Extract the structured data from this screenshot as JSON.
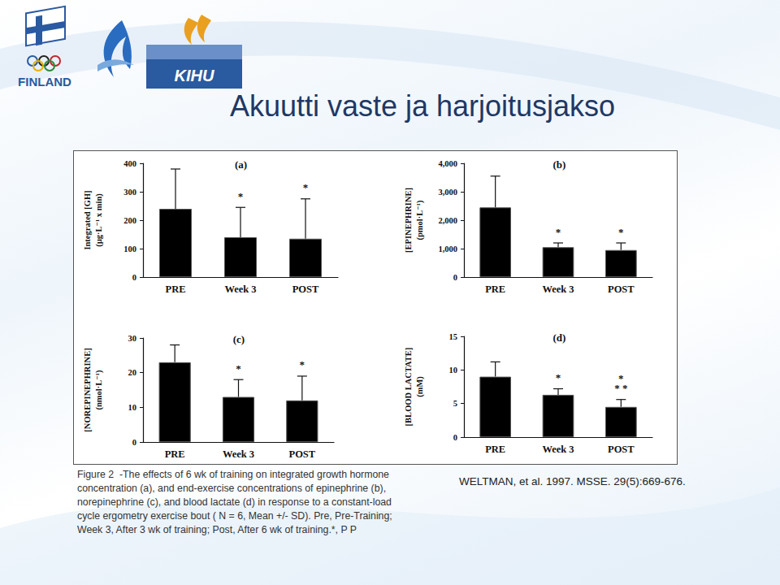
{
  "slide": {
    "title": "Akuutti vaste ja harjoitusjakso",
    "logos": [
      "FINLAND",
      "KIHU"
    ],
    "caption": [
      "Figure 2  -The effects of 6 wk of training on integrated growth hormone",
      "concentration (a), and end-exercise concentrations of epinephrine (b),",
      "norepinephrine (c), and blood lactate (d) in response to a constant-load",
      "cycle ergometry exercise bout ( N = 6, Mean +/- SD). Pre, Pre-Training;",
      "Week 3, After 3 wk of training; Post, After 6 wk of training.*, P P"
    ],
    "citation": "WELTMAN, et al. 1997. MSSE. 29(5):669-676."
  },
  "chart_data": [
    {
      "type": "bar",
      "title": "(a)",
      "ylabel": "Integrated [GH]\n(µg·L⁻¹ x min)",
      "categories": [
        "PRE",
        "Week 3",
        "POST"
      ],
      "values": [
        240,
        140,
        135
      ],
      "errors": [
        140,
        105,
        140
      ],
      "annotations": [
        null,
        "*",
        "*"
      ],
      "color": "#000000",
      "ylim": [
        0,
        400
      ],
      "yticks": [
        0,
        100,
        200,
        300,
        400
      ],
      "grid": false
    },
    {
      "type": "bar",
      "title": "(b)",
      "ylabel": "[EPINEPHRINE]\n(pmol·L⁻¹)",
      "categories": [
        "PRE",
        "Week 3",
        "POST"
      ],
      "values": [
        2450,
        1050,
        950
      ],
      "errors": [
        1100,
        150,
        250
      ],
      "annotations": [
        null,
        "*",
        "*"
      ],
      "color": "#000000",
      "ylim": [
        0,
        4000
      ],
      "yticks": [
        0,
        1000,
        2000,
        3000,
        4000
      ],
      "grid": false
    },
    {
      "type": "bar",
      "title": "(c)",
      "ylabel": "[NOREPINEPHRINE]\n(nmol·L⁻¹)",
      "categories": [
        "PRE",
        "Week 3",
        "POST"
      ],
      "values": [
        23,
        13,
        12
      ],
      "errors": [
        5,
        5,
        7
      ],
      "annotations": [
        null,
        "*",
        "*"
      ],
      "color": "#000000",
      "ylim": [
        0,
        30
      ],
      "yticks": [
        0,
        10,
        20,
        30
      ],
      "grid": false
    },
    {
      "type": "bar",
      "title": "(d)",
      "ylabel": "[BLOOD LACTATE]\n(mM)",
      "categories": [
        "PRE",
        "Week 3",
        "POST"
      ],
      "values": [
        9,
        6.3,
        4.5
      ],
      "errors": [
        2.2,
        0.9,
        1.1
      ],
      "annotations": [
        null,
        "*",
        "*\n* *"
      ],
      "color": "#000000",
      "ylim": [
        0,
        15
      ],
      "yticks": [
        0,
        5,
        10,
        15
      ],
      "grid": false
    }
  ]
}
